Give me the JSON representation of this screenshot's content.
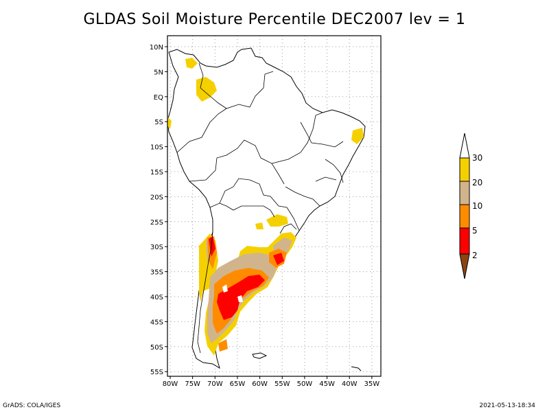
{
  "title": "GLDAS Soil Moisture Percentile DEC2007 lev = 1",
  "footer_left": "GrADS: COLA/IGES",
  "footer_right": "2021-05-13-18:34",
  "map": {
    "lon_range": [
      -80,
      -30
    ],
    "lat_range": [
      -56,
      11
    ],
    "lat_ticks": [
      {
        "v": 10,
        "label": "10N"
      },
      {
        "v": 5,
        "label": "5N"
      },
      {
        "v": 0,
        "label": "EQ"
      },
      {
        "v": -5,
        "label": "5S"
      },
      {
        "v": -10,
        "label": "10S"
      },
      {
        "v": -15,
        "label": "15S"
      },
      {
        "v": -20,
        "label": "20S"
      },
      {
        "v": -25,
        "label": "25S"
      },
      {
        "v": -30,
        "label": "30S"
      },
      {
        "v": -35,
        "label": "35S"
      },
      {
        "v": -40,
        "label": "40S"
      },
      {
        "v": -45,
        "label": "45S"
      },
      {
        "v": -50,
        "label": "50S"
      },
      {
        "v": -55,
        "label": "55S"
      }
    ],
    "lon_ticks": [
      {
        "v": -80,
        "label": "80W"
      },
      {
        "v": -75,
        "label": "75W"
      },
      {
        "v": -70,
        "label": "70W"
      },
      {
        "v": -65,
        "label": "65W"
      },
      {
        "v": -60,
        "label": "60W"
      },
      {
        "v": -55,
        "label": "55W"
      },
      {
        "v": -50,
        "label": "50W"
      },
      {
        "v": -45,
        "label": "45W"
      },
      {
        "v": -40,
        "label": "40W"
      },
      {
        "v": -35,
        "label": "35W"
      }
    ]
  },
  "colorbar": {
    "labels": [
      "30",
      "20",
      "10",
      "5",
      "2"
    ],
    "colors": [
      "#ffffff",
      "#f5d000",
      "#d2b48c",
      "#ff8c00",
      "#ff0000",
      "#8b4513"
    ]
  }
}
